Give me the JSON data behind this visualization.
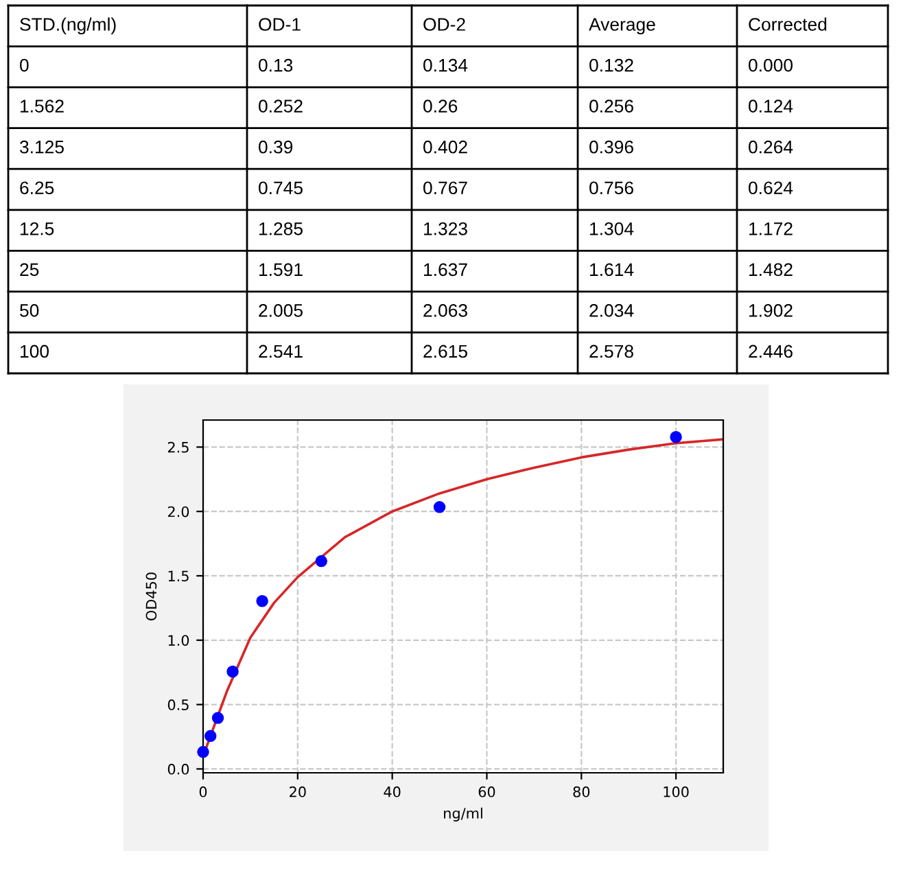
{
  "chart_data": [
    {
      "type": "other",
      "categories": [
        "STD.(ng/ml)",
        "OD-1",
        "OD-2",
        "Average",
        "Corrected"
      ],
      "annotations": [
        "0",
        "0.13",
        "0.134",
        "0.132",
        "0.000",
        "1.562",
        "0.252",
        "0.26",
        "0.256",
        "0.124",
        "3.125",
        "0.39",
        "0.402",
        "0.396",
        "0.264",
        "6.25",
        "0.745",
        "0.767",
        "0.756",
        "0.624",
        "12.5",
        "1.285",
        "1.323",
        "1.304",
        "1.172",
        "25",
        "1.591",
        "1.637",
        "1.614",
        "1.482",
        "50",
        "2.005",
        "2.063",
        "2.034",
        "1.902",
        "100",
        "2.541",
        "2.615",
        "2.578",
        "2.446"
      ]
    },
    {
      "type": "scatter",
      "xlabel": "ng/ml",
      "ylabel": "OD450",
      "xlim": [
        0,
        110
      ],
      "ylim": [
        -0.03,
        2.71
      ],
      "xticks": [
        0,
        20,
        40,
        60,
        80,
        100
      ],
      "yticks": [
        {
          "value": 0,
          "label": "0.0"
        },
        0.5,
        {
          "value": 1,
          "label": "1.0"
        },
        1.5,
        {
          "value": 2,
          "label": "2.0"
        },
        2.5
      ],
      "grid": true,
      "series": [
        {
          "type": "scatter",
          "color": "#0000ff",
          "marker": "circle",
          "x": [
            0,
            1.562,
            3.125,
            6.25,
            12.5,
            25,
            50,
            100
          ],
          "values": [
            0.132,
            0.256,
            0.396,
            0.756,
            1.304,
            1.614,
            2.034,
            2.578
          ]
        },
        {
          "type": "line",
          "color": "#d62728",
          "line_style": "solid",
          "x": [
            0,
            2,
            5,
            10,
            15,
            20,
            30,
            40,
            50,
            60,
            70,
            80,
            90,
            100,
            110
          ],
          "values": [
            0.1,
            0.3,
            0.6,
            1.02,
            1.29,
            1.49,
            1.8,
            2.0,
            2.14,
            2.25,
            2.34,
            2.42,
            2.48,
            2.53,
            2.56
          ]
        }
      ]
    }
  ]
}
